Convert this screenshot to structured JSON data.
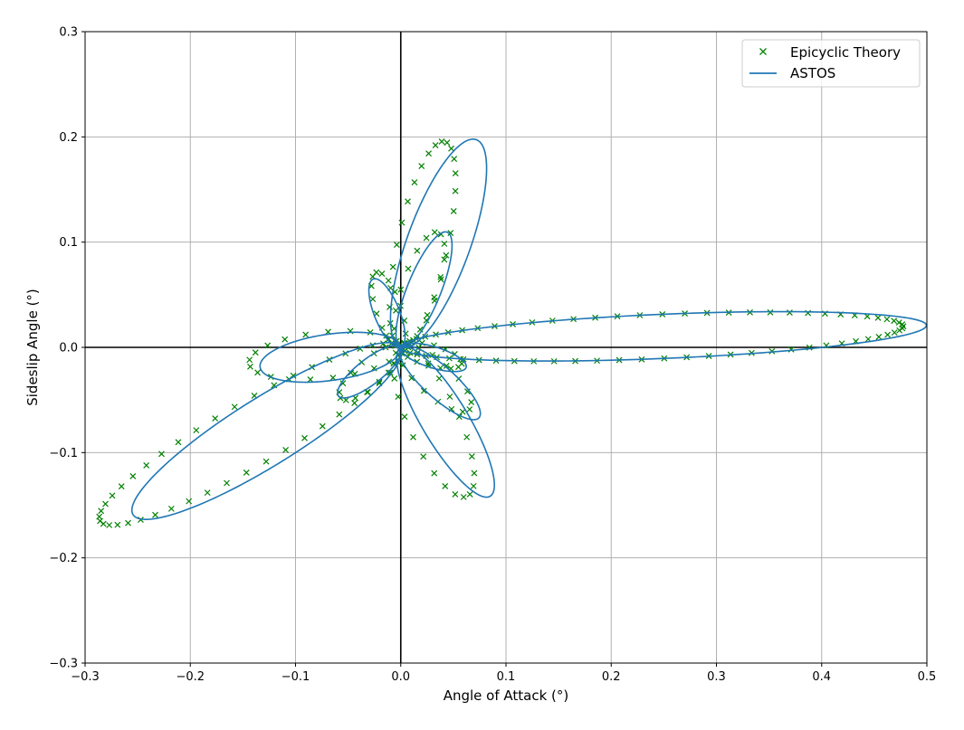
{
  "chart_data": {
    "type": "line",
    "title": "",
    "xlabel": "Angle of Attack (°)",
    "ylabel": "Sideslip Angle (°)",
    "xlim": [
      -0.3,
      0.5
    ],
    "ylim": [
      -0.3,
      0.3
    ],
    "xticks": [
      -0.3,
      -0.2,
      -0.1,
      0.0,
      0.1,
      0.2,
      0.3,
      0.4,
      0.5
    ],
    "yticks": [
      -0.3,
      -0.2,
      -0.1,
      0.0,
      0.1,
      0.2,
      0.3
    ],
    "xtick_labels": [
      "−0.3",
      "−0.2",
      "−0.1",
      "0.0",
      "0.1",
      "0.2",
      "0.3",
      "0.4",
      "0.5"
    ],
    "ytick_labels": [
      "−0.3",
      "−0.2",
      "−0.1",
      "0.0",
      "0.1",
      "0.2",
      "0.3"
    ],
    "grid": true,
    "legend_position": "top-right",
    "reference_lines": {
      "x": 0.0,
      "y": 0.0
    },
    "series": [
      {
        "name": "Epicyclic Theory",
        "style": "markers",
        "marker": "x",
        "color": "#008000",
        "loops": [
          {
            "angle_deg": 2.4,
            "length": 0.478,
            "half_width": 0.021,
            "offset": 0.0
          },
          {
            "angle_deg": 78,
            "length": 0.2,
            "half_width": 0.024,
            "offset": 0.0
          },
          {
            "angle_deg": 210,
            "length": 0.33,
            "half_width": 0.03,
            "offset": 0.0
          },
          {
            "angle_deg": 294,
            "length": 0.155,
            "half_width": 0.024,
            "offset": 0.0
          },
          {
            "angle_deg": 72,
            "length": 0.115,
            "half_width": 0.017,
            "offset": 0.0
          },
          {
            "angle_deg": 186,
            "length": 0.145,
            "half_width": 0.022,
            "offset": 0.0
          },
          {
            "angle_deg": 318,
            "length": 0.088,
            "half_width": 0.016,
            "offset": 0.0
          },
          {
            "angle_deg": 108,
            "length": 0.075,
            "half_width": 0.012,
            "offset": 0.0
          },
          {
            "angle_deg": 220,
            "length": 0.075,
            "half_width": 0.013,
            "offset": 0.0
          },
          {
            "angle_deg": 345,
            "length": 0.06,
            "half_width": 0.01,
            "offset": 0.0
          }
        ]
      },
      {
        "name": "ASTOS",
        "style": "line",
        "color": "#1f77b4",
        "loops": [
          {
            "angle_deg": 2.4,
            "length": 0.5,
            "half_width": 0.021,
            "offset": 0.0
          },
          {
            "angle_deg": 70,
            "length": 0.21,
            "half_width": 0.03,
            "offset": 0.0
          },
          {
            "angle_deg": 212,
            "length": 0.3,
            "half_width": 0.032,
            "offset": 0.0
          },
          {
            "angle_deg": 301,
            "length": 0.165,
            "half_width": 0.022,
            "offset": 0.0
          },
          {
            "angle_deg": 68,
            "length": 0.118,
            "half_width": 0.016,
            "offset": 0.0
          },
          {
            "angle_deg": 188,
            "length": 0.135,
            "half_width": 0.022,
            "offset": 0.0
          },
          {
            "angle_deg": 318,
            "length": 0.1,
            "half_width": 0.015,
            "offset": 0.0
          },
          {
            "angle_deg": 112,
            "length": 0.07,
            "half_width": 0.012,
            "offset": 0.0
          },
          {
            "angle_deg": 218,
            "length": 0.075,
            "half_width": 0.012,
            "offset": 0.0
          },
          {
            "angle_deg": 343,
            "length": 0.065,
            "half_width": 0.01,
            "offset": 0.0
          }
        ]
      }
    ]
  }
}
